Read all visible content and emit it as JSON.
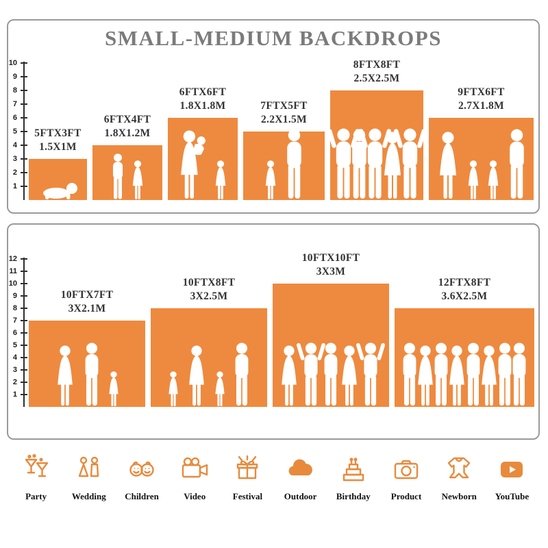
{
  "title": "SMALL-MEDIUM BACKDROPS",
  "accent_color": "#EE8A3F",
  "panels": [
    {
      "name": "small",
      "ruler_max": 10,
      "items": [
        {
          "size_ft": "5FTX3FT",
          "size_m": "1.5X1M",
          "w_ft": 5,
          "h_ft": 3,
          "figures": [
            "baby-crawling"
          ]
        },
        {
          "size_ft": "6FTX4FT",
          "size_m": "1.8X1.2M",
          "w_ft": 6,
          "h_ft": 4,
          "figures": [
            "child",
            "child-small"
          ]
        },
        {
          "size_ft": "6FTX6FT",
          "size_m": "1.8X1.8M",
          "w_ft": 6,
          "h_ft": 6,
          "figures": [
            "woman-baby",
            "child-small"
          ]
        },
        {
          "size_ft": "7FTX5FT",
          "size_m": "2.2X1.5M",
          "w_ft": 7,
          "h_ft": 5,
          "figures": [
            "child-small",
            "man"
          ]
        },
        {
          "size_ft": "8FTX8FT",
          "size_m": "2.5X2.5M",
          "w_ft": 8,
          "h_ft": 8,
          "figures": [
            "adult-arms-up",
            "man",
            "adult-arms-up",
            "woman",
            "adult-arms-up"
          ]
        },
        {
          "size_ft": "9FTX6FT",
          "size_m": "2.7X1.8M",
          "w_ft": 9,
          "h_ft": 6,
          "figures": [
            "woman",
            "child-small",
            "child-small",
            "man"
          ]
        }
      ]
    },
    {
      "name": "medium",
      "ruler_max": 12,
      "items": [
        {
          "size_ft": "10FTX7FT",
          "size_m": "3X2.1M",
          "w_ft": 10,
          "h_ft": 7,
          "figures": [
            "woman",
            "man",
            "child-small"
          ]
        },
        {
          "size_ft": "10FTX8FT",
          "size_m": "3X2.5M",
          "w_ft": 10,
          "h_ft": 8,
          "figures": [
            "child-small",
            "woman",
            "child-small",
            "man"
          ]
        },
        {
          "size_ft": "10FTX10FT",
          "size_m": "3X3M",
          "w_ft": 10,
          "h_ft": 10,
          "figures": [
            "woman",
            "adult-arms-up",
            "man",
            "woman",
            "adult-arms-up"
          ]
        },
        {
          "size_ft": "12FTX8FT",
          "size_m": "3.6X2.5M",
          "w_ft": 12,
          "h_ft": 8,
          "figures": [
            "man",
            "woman",
            "man",
            "woman",
            "man",
            "woman",
            "man",
            "man"
          ]
        }
      ]
    }
  ],
  "categories": [
    {
      "label": "Party",
      "icon": "party-icon"
    },
    {
      "label": "Wedding",
      "icon": "wedding-icon"
    },
    {
      "label": "Children",
      "icon": "children-icon"
    },
    {
      "label": "Video",
      "icon": "video-icon"
    },
    {
      "label": "Festival",
      "icon": "festival-icon"
    },
    {
      "label": "Outdoor",
      "icon": "outdoor-icon"
    },
    {
      "label": "Birthday",
      "icon": "birthday-icon"
    },
    {
      "label": "Product",
      "icon": "product-icon"
    },
    {
      "label": "Newborn",
      "icon": "newborn-icon"
    },
    {
      "label": "YouTube",
      "icon": "youtube-icon"
    }
  ]
}
